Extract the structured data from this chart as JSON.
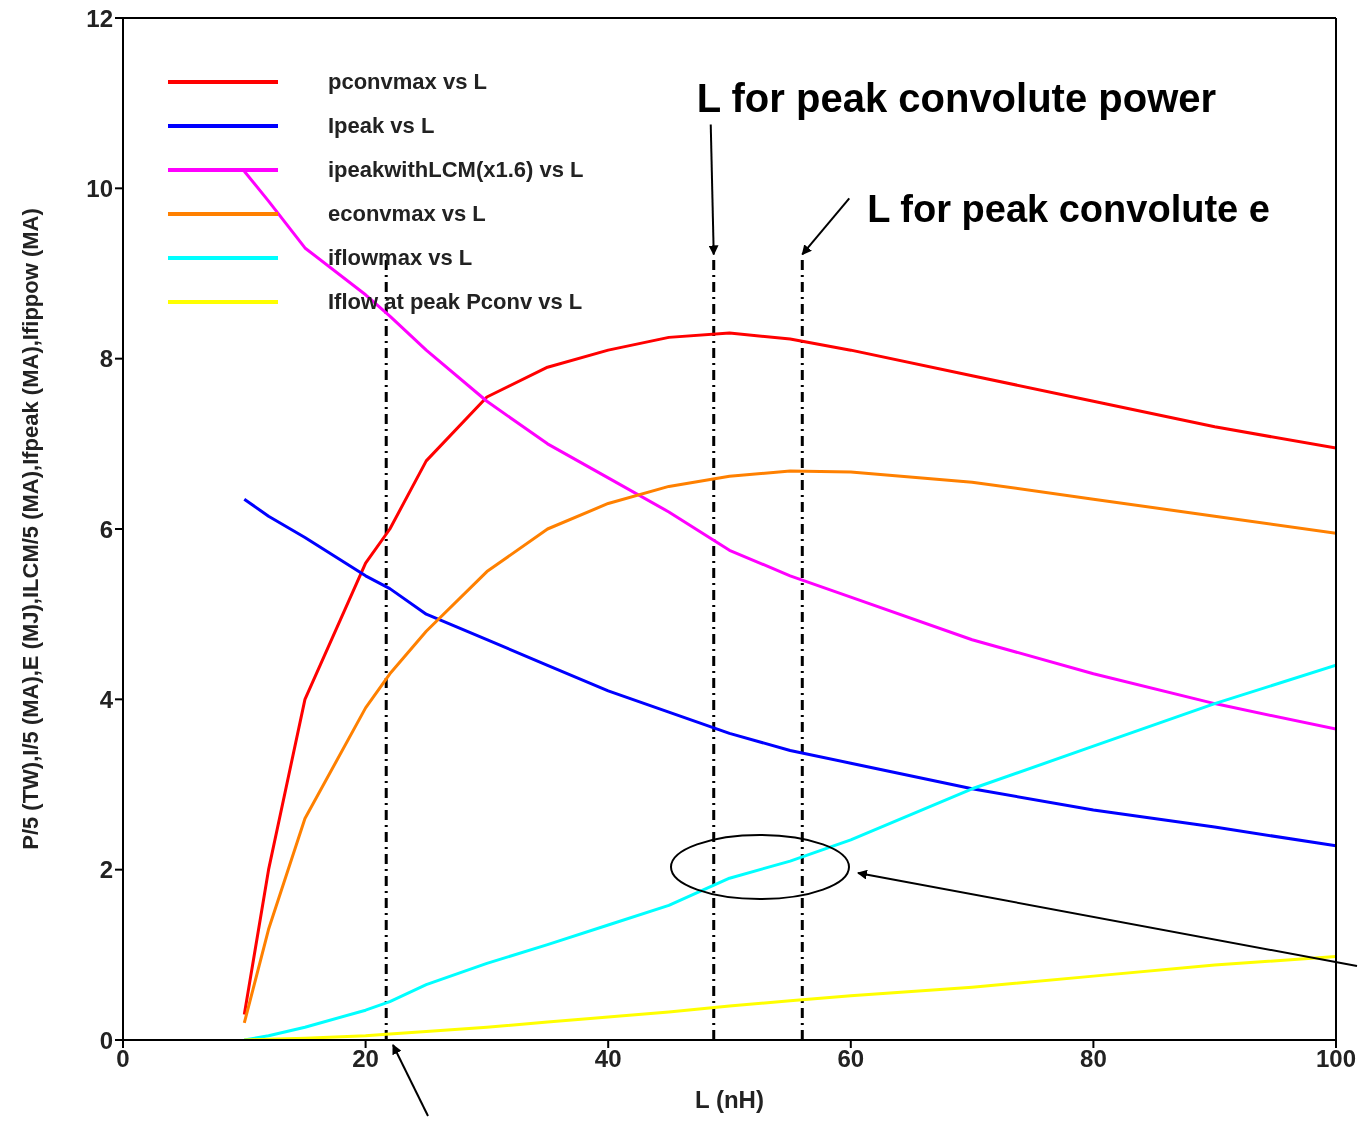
{
  "chart_data": {
    "type": "line",
    "xlabel": "L (nH)",
    "ylabel": "P/5 (TW),I/5 (MA),E (MJ),ILCM/5 (MA),Ifpeak (MA),Ifippow (MA)",
    "x": [
      10,
      12,
      15,
      20,
      22,
      25,
      30,
      35,
      40,
      45,
      50,
      55,
      60,
      70,
      80,
      90,
      100
    ],
    "series": [
      {
        "name": "pconvmax vs L",
        "color": "#ff0000",
        "values": [
          0.3,
          2.0,
          4.0,
          5.6,
          6.0,
          6.8,
          7.55,
          7.9,
          8.1,
          8.25,
          8.3,
          8.23,
          8.1,
          7.8,
          7.5,
          7.2,
          6.95
        ]
      },
      {
        "name": "Ipeak vs L",
        "color": "#0000ff",
        "values": [
          6.35,
          6.15,
          5.9,
          5.45,
          5.3,
          5.0,
          4.7,
          4.4,
          4.1,
          3.85,
          3.6,
          3.4,
          3.25,
          2.95,
          2.7,
          2.5,
          2.28
        ]
      },
      {
        "name": "ipeakwithLCM(x1.6) vs L",
        "color": "#ff00ff",
        "values": [
          10.2,
          9.85,
          9.3,
          8.75,
          8.5,
          8.1,
          7.5,
          7.0,
          6.6,
          6.2,
          5.75,
          5.45,
          5.2,
          4.7,
          4.3,
          3.95,
          3.65
        ]
      },
      {
        "name": "econvmax vs L",
        "color": "#ff8000",
        "values": [
          0.2,
          1.3,
          2.6,
          3.9,
          4.3,
          4.8,
          5.5,
          6.0,
          6.3,
          6.5,
          6.62,
          6.68,
          6.67,
          6.55,
          6.35,
          6.15,
          5.95
        ]
      },
      {
        "name": "iflowmax vs L",
        "color": "#00ffff",
        "values": [
          0,
          0.05,
          0.15,
          0.35,
          0.45,
          0.65,
          0.9,
          1.12,
          1.35,
          1.58,
          1.9,
          2.1,
          2.35,
          2.95,
          3.45,
          3.95,
          4.4
        ]
      },
      {
        "name": "Iflow at peak Pconv vs L",
        "color": "#ffff00",
        "values": [
          0,
          0.01,
          0.02,
          0.05,
          0.07,
          0.1,
          0.15,
          0.21,
          0.27,
          0.33,
          0.4,
          0.46,
          0.52,
          0.62,
          0.75,
          0.88,
          0.98
        ]
      }
    ],
    "xlim": [
      0,
      100
    ],
    "xticks": [
      0,
      20,
      40,
      60,
      80,
      100
    ],
    "ylim": [
      0,
      12
    ],
    "yticks": [
      0,
      2,
      4,
      6,
      8,
      10,
      12
    ],
    "ref_lines": [
      {
        "axis": "x",
        "value": 21.7,
        "color": "#000000",
        "line_style": "dashed"
      },
      {
        "axis": "x",
        "value": 48.7,
        "color": "#000000",
        "line_style": "dashed"
      },
      {
        "axis": "x",
        "value": 56,
        "color": "#000000",
        "line_style": "dashed"
      }
    ],
    "annotations": [
      {
        "text": "L for peak convolute power",
        "x": 48.7,
        "y": 9.2
      },
      {
        "text": "L for peak convolute e",
        "x": 56,
        "y": 9.2
      }
    ],
    "legend": "top left",
    "grid": false,
    "marker": "none",
    "line_style": "solid"
  }
}
